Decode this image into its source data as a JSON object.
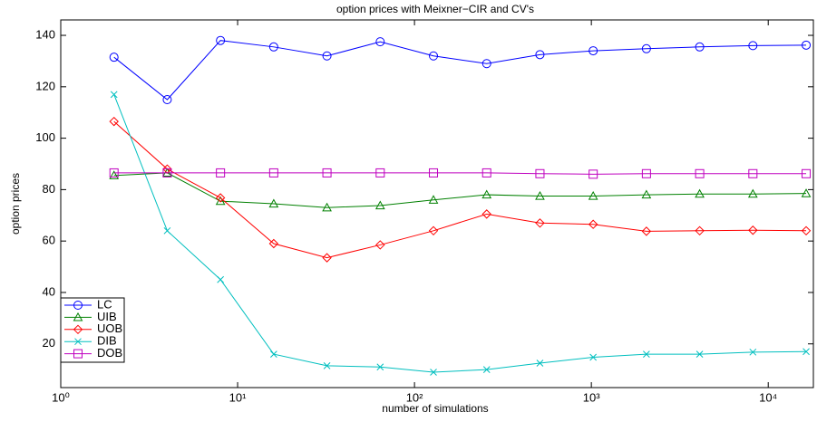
{
  "chart_data": {
    "type": "line",
    "title": "option prices with Meixner−CIR and CV's",
    "x_label": "number of simulations",
    "y_label": "option prices",
    "x": [
      2,
      4,
      8,
      16,
      32,
      64,
      128,
      256,
      512,
      1024,
      2048,
      4096,
      8192,
      16384
    ],
    "x_scale": "log",
    "legend": "lower left",
    "xlim": [
      1,
      18000
    ],
    "xticks": [
      {
        "value": 1,
        "label": "10⁰"
      },
      {
        "value": 10,
        "label": "10¹"
      },
      {
        "value": 100,
        "label": "10²"
      },
      {
        "value": 1000,
        "label": "10³"
      },
      {
        "value": 10000,
        "label": "10⁴"
      }
    ],
    "ylim": [
      3,
      146
    ],
    "yticks": [
      20,
      40,
      60,
      80,
      100,
      120,
      140
    ],
    "series": [
      {
        "name": "LC",
        "color": "#0000ff",
        "marker": "circle",
        "values": [
          131.5,
          115,
          138,
          135.5,
          132,
          137.5,
          132,
          129,
          132.5,
          134,
          134.8,
          135.5,
          136,
          136.2
        ]
      },
      {
        "name": "UIB",
        "color": "#008000",
        "marker": "triangle",
        "values": [
          85.5,
          86.5,
          75.5,
          74.5,
          73,
          73.8,
          76,
          78,
          77.5,
          77.5,
          78,
          78.3,
          78.3,
          78.5
        ]
      },
      {
        "name": "UOB",
        "color": "#ff0000",
        "marker": "diamond",
        "values": [
          106.5,
          88,
          76.8,
          59,
          53.5,
          58.5,
          64,
          70.5,
          67,
          66.5,
          63.8,
          64,
          64.2,
          64
        ]
      },
      {
        "name": "DIB",
        "color": "#00bfbf",
        "marker": "x",
        "values": [
          117,
          64,
          45,
          16,
          11.5,
          11,
          9,
          10,
          12.5,
          14.8,
          16,
          16,
          16.8,
          17
        ]
      },
      {
        "name": "DOB",
        "color": "#bf00bf",
        "marker": "square",
        "values": [
          86.5,
          86.5,
          86.5,
          86.5,
          86.5,
          86.5,
          86.5,
          86.5,
          86.2,
          86,
          86.2,
          86.2,
          86.2,
          86.2
        ]
      }
    ]
  }
}
